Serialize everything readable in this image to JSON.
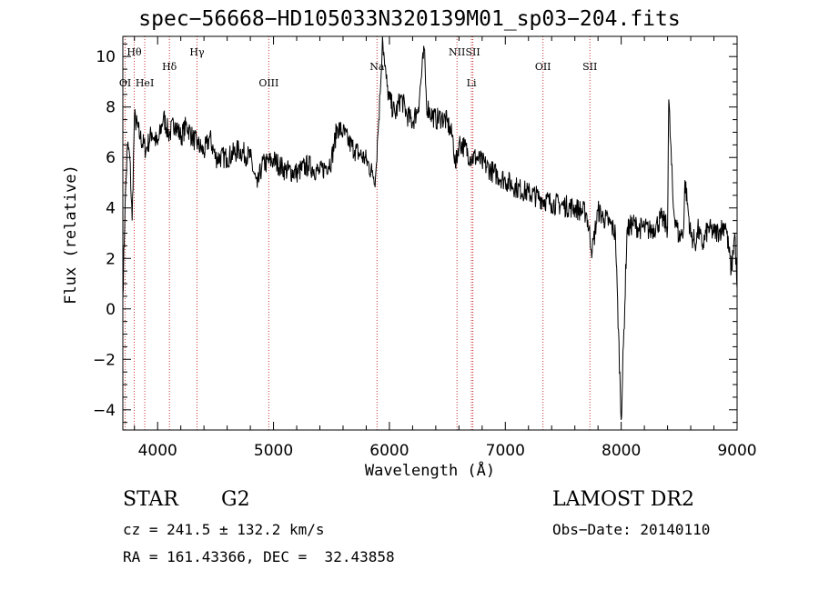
{
  "chart_data": {
    "type": "line",
    "title": "spec−56668−HD105033N320139M01_sp03−204.fits",
    "xlabel": "Wavelength (Å)",
    "ylabel": "Flux (relative)",
    "xlim": [
      3700,
      9000
    ],
    "ylim": [
      -4.8,
      10.8
    ],
    "x_ticks": [
      4000,
      5000,
      6000,
      7000,
      8000,
      9000
    ],
    "y_ticks": [
      -4,
      -2,
      0,
      2,
      4,
      6,
      8,
      10
    ],
    "grid": false,
    "series": [
      {
        "x": [
          3700,
          3720,
          3740,
          3760,
          3780,
          3800,
          3850,
          3900,
          3950,
          4000,
          4050,
          4100,
          4150,
          4200,
          4250,
          4300,
          4350,
          4400,
          4450,
          4500,
          4600,
          4700,
          4800,
          4860,
          4900,
          5000,
          5100,
          5200,
          5300,
          5400,
          5500,
          5550,
          5600,
          5650,
          5700,
          5750,
          5800,
          5850,
          5880,
          5900,
          5920,
          5940,
          5960,
          5980,
          6000,
          6050,
          6100,
          6150,
          6200,
          6250,
          6300,
          6320,
          6350,
          6400,
          6450,
          6500,
          6550,
          6570,
          6600,
          6650,
          6700,
          6750,
          6800,
          6900,
          7000,
          7100,
          7200,
          7300,
          7400,
          7500,
          7600,
          7700,
          7750,
          7800,
          7850,
          7900,
          7950,
          8000,
          8050,
          8100,
          8150,
          8200,
          8250,
          8300,
          8350,
          8400,
          8410,
          8450,
          8500,
          8540,
          8550,
          8600,
          8650,
          8660,
          8700,
          8750,
          8800,
          8850,
          8900,
          8950,
          8980,
          9000
        ],
        "values": [
          0.5,
          4.2,
          6.5,
          6.0,
          3.5,
          7.6,
          6.8,
          6.3,
          7.0,
          6.5,
          7.6,
          6.9,
          7.4,
          6.8,
          7.3,
          6.8,
          6.5,
          6.2,
          6.8,
          6.0,
          6.0,
          6.3,
          6.0,
          4.8,
          5.7,
          5.9,
          5.5,
          5.4,
          5.7,
          5.4,
          5.9,
          7.2,
          7.0,
          6.6,
          6.3,
          6.1,
          5.9,
          5.4,
          5.2,
          6.9,
          8.5,
          10.8,
          9.6,
          8.8,
          8.3,
          7.7,
          8.4,
          7.7,
          7.4,
          8.0,
          10.3,
          8.1,
          7.8,
          7.5,
          7.6,
          7.4,
          6.7,
          5.6,
          6.6,
          6.4,
          6.0,
          6.0,
          5.8,
          5.4,
          5.1,
          4.8,
          4.6,
          4.4,
          4.2,
          4.1,
          4.0,
          3.8,
          2.3,
          3.9,
          3.6,
          3.4,
          3.0,
          -4.4,
          3.1,
          3.4,
          3.2,
          3.2,
          3.1,
          3.3,
          3.6,
          3.2,
          8.3,
          4.0,
          2.8,
          3.2,
          5.1,
          2.9,
          2.6,
          3.2,
          2.5,
          3.2,
          3.0,
          3.1,
          3.4,
          1.5,
          3.0,
          0.8
        ]
      }
    ],
    "lines": [
      {
        "name": "Hθ",
        "x": 3798,
        "row": 0
      },
      {
        "name": "OI",
        "x": 3720,
        "row": 1
      },
      {
        "name": "HeI",
        "x": 3889,
        "row": 1
      },
      {
        "name": "Hδ",
        "x": 4102,
        "row": 2
      },
      {
        "name": "Hγ",
        "x": 4340,
        "row": 0
      },
      {
        "name": "OIII",
        "x": 4959,
        "row": 1
      },
      {
        "name": "Na",
        "x": 5893,
        "row": 2
      },
      {
        "name": "NII",
        "x": 6583,
        "row": 0
      },
      {
        "name": "SII",
        "x": 6720,
        "row": 0
      },
      {
        "name": "Li",
        "x": 6708,
        "row": 1
      },
      {
        "name": "OII",
        "x": 7325,
        "row": 2
      },
      {
        "name": "SII",
        "x": 7730,
        "row": 2
      }
    ]
  },
  "info": {
    "class": "STAR",
    "subclass": "G2",
    "survey": "LAMOST DR2",
    "cz": "cz = 241.5 ± 132.2 km/s",
    "obsdate": "Obs−Date: 20140110",
    "radec": "RA = 161.43366, DEC =  32.43858"
  },
  "colors": {
    "spectrum": "#000000",
    "linemark": "#cc3333",
    "axis": "#000000"
  }
}
